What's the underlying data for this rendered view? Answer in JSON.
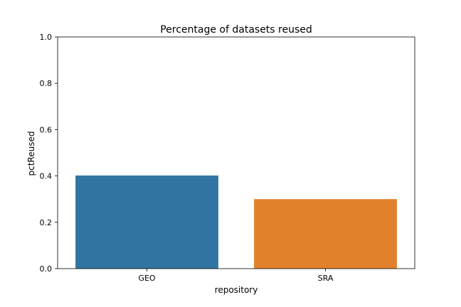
{
  "chart_data": {
    "type": "bar",
    "title": "Percentage of datasets reused",
    "xlabel": "repository",
    "ylabel": "pctReused",
    "categories": [
      "GEO",
      "SRA"
    ],
    "values": [
      0.402,
      0.3
    ],
    "colors": [
      "#3274a1",
      "#e1812c"
    ],
    "ylim": [
      0,
      1.0
    ],
    "yticks": [
      "0.0",
      "0.2",
      "0.4",
      "0.6",
      "0.8",
      "1.0"
    ],
    "grid": false,
    "legend": "none"
  }
}
